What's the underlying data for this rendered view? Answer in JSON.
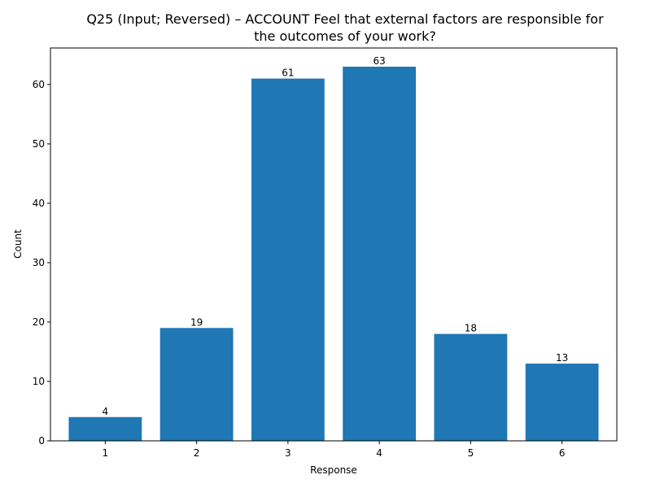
{
  "chart_data": {
    "type": "bar",
    "title_lines": [
      "Q25 (Input; Reversed) – ACCOUNT Feel that external factors are responsible for",
      "the outcomes of your work?"
    ],
    "xlabel": "Response",
    "ylabel": "Count",
    "categories": [
      "1",
      "2",
      "3",
      "4",
      "5",
      "6"
    ],
    "values": [
      4,
      19,
      61,
      63,
      18,
      13
    ],
    "data_labels": [
      "4",
      "19",
      "61",
      "63",
      "18",
      "13"
    ],
    "ylim": [
      0,
      66.15
    ],
    "yticks": [
      0,
      10,
      20,
      30,
      40,
      50,
      60
    ],
    "ytick_labels": [
      "0",
      "10",
      "20",
      "30",
      "40",
      "50",
      "60"
    ],
    "grid": false,
    "bar_color": "#1f77b4"
  }
}
